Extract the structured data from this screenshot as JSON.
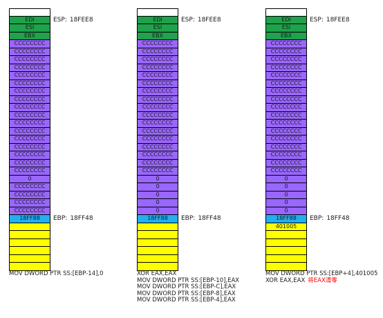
{
  "colors": {
    "empty": "#ffffff",
    "saved_reg": "#1fa24c",
    "filler": "#9966ff",
    "ebp_slot": "#1fb0f0",
    "caller": "#ffff00",
    "note": "#ff0000"
  },
  "panels": [
    {
      "id": "panel-1",
      "cells": [
        {
          "label": "",
          "kind": "empty"
        },
        {
          "label": "EDI",
          "kind": "saved_reg"
        },
        {
          "label": "ESI",
          "kind": "saved_reg"
        },
        {
          "label": "EBX",
          "kind": "saved_reg"
        },
        {
          "label": "CCCCCCCC",
          "kind": "filler"
        },
        {
          "label": "CCCCCCCC",
          "kind": "filler"
        },
        {
          "label": "CCCCCCCC",
          "kind": "filler"
        },
        {
          "label": "CCCCCCCC",
          "kind": "filler"
        },
        {
          "label": "CCCCCCCC",
          "kind": "filler"
        },
        {
          "label": "CCCCCCCC",
          "kind": "filler"
        },
        {
          "label": "CCCCCCCC",
          "kind": "filler"
        },
        {
          "label": "CCCCCCCC",
          "kind": "filler"
        },
        {
          "label": "CCCCCCCC",
          "kind": "filler"
        },
        {
          "label": "CCCCCCCC",
          "kind": "filler"
        },
        {
          "label": "CCCCCCCC",
          "kind": "filler"
        },
        {
          "label": "CCCCCCCC",
          "kind": "filler"
        },
        {
          "label": "CCCCCCCC",
          "kind": "filler"
        },
        {
          "label": "CCCCCCCC",
          "kind": "filler"
        },
        {
          "label": "CCCCCCCC",
          "kind": "filler"
        },
        {
          "label": "CCCCCCCC",
          "kind": "filler"
        },
        {
          "label": "CCCCCCCC",
          "kind": "filler"
        },
        {
          "label": "0",
          "kind": "filler"
        },
        {
          "label": "CCCCCCCC",
          "kind": "filler"
        },
        {
          "label": "CCCCCCCC",
          "kind": "filler"
        },
        {
          "label": "CCCCCCCC",
          "kind": "filler"
        },
        {
          "label": "CCCCCCCC",
          "kind": "filler"
        },
        {
          "label": "18FF88",
          "kind": "ebp_slot"
        },
        {
          "label": "",
          "kind": "caller"
        },
        {
          "label": "",
          "kind": "caller"
        },
        {
          "label": "",
          "kind": "caller"
        },
        {
          "label": "",
          "kind": "caller"
        },
        {
          "label": "",
          "kind": "caller"
        },
        {
          "label": "",
          "kind": "caller"
        }
      ],
      "esp": {
        "register": "ESP:",
        "value": "18FEE8"
      },
      "ebp": {
        "register": "EBP:",
        "value": "18FF48"
      },
      "code": [
        {
          "text": "MOV DWORD PTR SS:[EBP-14],0",
          "note": ""
        }
      ]
    },
    {
      "id": "panel-2",
      "cells": [
        {
          "label": "",
          "kind": "empty"
        },
        {
          "label": "EDI",
          "kind": "saved_reg"
        },
        {
          "label": "ESI",
          "kind": "saved_reg"
        },
        {
          "label": "EBX",
          "kind": "saved_reg"
        },
        {
          "label": "CCCCCCCC",
          "kind": "filler"
        },
        {
          "label": "CCCCCCCC",
          "kind": "filler"
        },
        {
          "label": "CCCCCCCC",
          "kind": "filler"
        },
        {
          "label": "CCCCCCCC",
          "kind": "filler"
        },
        {
          "label": "CCCCCCCC",
          "kind": "filler"
        },
        {
          "label": "CCCCCCCC",
          "kind": "filler"
        },
        {
          "label": "CCCCCCCC",
          "kind": "filler"
        },
        {
          "label": "CCCCCCCC",
          "kind": "filler"
        },
        {
          "label": "CCCCCCCC",
          "kind": "filler"
        },
        {
          "label": "CCCCCCCC",
          "kind": "filler"
        },
        {
          "label": "CCCCCCCC",
          "kind": "filler"
        },
        {
          "label": "CCCCCCCC",
          "kind": "filler"
        },
        {
          "label": "CCCCCCCC",
          "kind": "filler"
        },
        {
          "label": "CCCCCCCC",
          "kind": "filler"
        },
        {
          "label": "CCCCCCCC",
          "kind": "filler"
        },
        {
          "label": "CCCCCCCC",
          "kind": "filler"
        },
        {
          "label": "CCCCCCCC",
          "kind": "filler"
        },
        {
          "label": "0",
          "kind": "filler"
        },
        {
          "label": "0",
          "kind": "filler"
        },
        {
          "label": "0",
          "kind": "filler"
        },
        {
          "label": "0",
          "kind": "filler"
        },
        {
          "label": "0",
          "kind": "filler"
        },
        {
          "label": "18FF88",
          "kind": "ebp_slot"
        },
        {
          "label": "",
          "kind": "caller"
        },
        {
          "label": "",
          "kind": "caller"
        },
        {
          "label": "",
          "kind": "caller"
        },
        {
          "label": "",
          "kind": "caller"
        },
        {
          "label": "",
          "kind": "caller"
        },
        {
          "label": "",
          "kind": "caller"
        }
      ],
      "esp": {
        "register": "ESP:",
        "value": "18FEE8"
      },
      "ebp": {
        "register": "EBP:",
        "value": "18FF48"
      },
      "code": [
        {
          "text": "XOR EAX,EAX",
          "note": ""
        },
        {
          "text": "MOV DWORD PTR SS:[EBP-10],EAX",
          "note": ""
        },
        {
          "text": "MOV DWORD PTR SS:[EBP-C],EAX",
          "note": ""
        },
        {
          "text": "MOV DWORD PTR SS:[EBP-8],EAX",
          "note": ""
        },
        {
          "text": "MOV DWORD PTR SS:[EBP-4],EAX",
          "note": ""
        }
      ]
    },
    {
      "id": "panel-3",
      "cells": [
        {
          "label": "",
          "kind": "empty"
        },
        {
          "label": "EDI",
          "kind": "saved_reg"
        },
        {
          "label": "ESI",
          "kind": "saved_reg"
        },
        {
          "label": "EBX",
          "kind": "saved_reg"
        },
        {
          "label": "CCCCCCCC",
          "kind": "filler"
        },
        {
          "label": "CCCCCCCC",
          "kind": "filler"
        },
        {
          "label": "CCCCCCCC",
          "kind": "filler"
        },
        {
          "label": "CCCCCCCC",
          "kind": "filler"
        },
        {
          "label": "CCCCCCCC",
          "kind": "filler"
        },
        {
          "label": "CCCCCCCC",
          "kind": "filler"
        },
        {
          "label": "CCCCCCCC",
          "kind": "filler"
        },
        {
          "label": "CCCCCCCC",
          "kind": "filler"
        },
        {
          "label": "CCCCCCCC",
          "kind": "filler"
        },
        {
          "label": "CCCCCCCC",
          "kind": "filler"
        },
        {
          "label": "CCCCCCCC",
          "kind": "filler"
        },
        {
          "label": "CCCCCCCC",
          "kind": "filler"
        },
        {
          "label": "CCCCCCCC",
          "kind": "filler"
        },
        {
          "label": "CCCCCCCC",
          "kind": "filler"
        },
        {
          "label": "CCCCCCCC",
          "kind": "filler"
        },
        {
          "label": "CCCCCCCC",
          "kind": "filler"
        },
        {
          "label": "CCCCCCCC",
          "kind": "filler"
        },
        {
          "label": "0",
          "kind": "filler"
        },
        {
          "label": "0",
          "kind": "filler"
        },
        {
          "label": "0",
          "kind": "filler"
        },
        {
          "label": "0",
          "kind": "filler"
        },
        {
          "label": "0",
          "kind": "filler"
        },
        {
          "label": "18FF88",
          "kind": "ebp_slot"
        },
        {
          "label": "401005",
          "kind": "caller"
        },
        {
          "label": "",
          "kind": "caller"
        },
        {
          "label": "",
          "kind": "caller"
        },
        {
          "label": "",
          "kind": "caller"
        },
        {
          "label": "",
          "kind": "caller"
        },
        {
          "label": "",
          "kind": "caller"
        }
      ],
      "esp": {
        "register": "ESP:",
        "value": "18FEE8"
      },
      "ebp": {
        "register": "EBP:",
        "value": "18FF48"
      },
      "code": [
        {
          "text": "MOV DWORD PTR SS:[EBP+4],401005",
          "note": ""
        },
        {
          "text": "XOR EAX,EAX",
          "note": "将EAX清零"
        }
      ]
    }
  ]
}
